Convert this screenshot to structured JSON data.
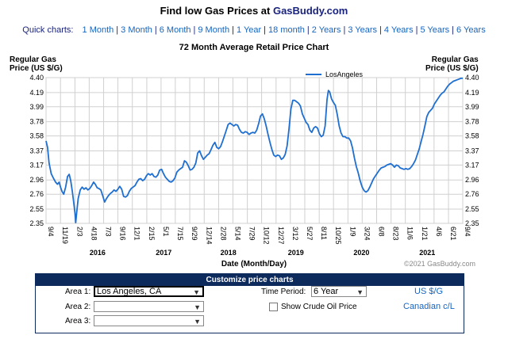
{
  "header": {
    "title_prefix": "Find low Gas Prices at ",
    "title_brand": "GasBuddy.com"
  },
  "quick_charts": {
    "label": "Quick charts:",
    "links": [
      "1 Month",
      "3 Month",
      "6 Month",
      "9 Month",
      "1 Year",
      "18 month",
      "2 Years",
      "3 Years",
      "4 Years",
      "5 Years",
      "6 Years"
    ]
  },
  "chart_data": {
    "type": "line",
    "title": "72 Month Average Retail Price Chart",
    "ylabel_left": [
      "Regular Gas",
      "Price (US $/G)"
    ],
    "ylabel_right": [
      "Regular Gas",
      "Price (US $/G)"
    ],
    "xlabel": "Date (Month/Day)",
    "ylim": [
      2.35,
      4.4
    ],
    "yticks": [
      "2.35",
      "2.55",
      "2.76",
      "2.96",
      "3.17",
      "3.37",
      "3.58",
      "3.78",
      "3.99",
      "4.19",
      "4.40"
    ],
    "ytick_values": [
      2.35,
      2.55,
      2.76,
      2.96,
      3.17,
      3.37,
      3.58,
      3.78,
      3.99,
      4.19,
      4.4
    ],
    "xlim": [
      "2015-09-04",
      "2021-09-04"
    ],
    "xticks": [
      {
        "date": "2015-09-04",
        "label": "9/4"
      },
      {
        "date": "2015-11-19",
        "label": "11/19"
      },
      {
        "date": "2016-02-03",
        "label": "2/3"
      },
      {
        "date": "2016-04-18",
        "label": "4/18"
      },
      {
        "date": "2016-07-03",
        "label": "7/3"
      },
      {
        "date": "2016-09-16",
        "label": "9/16"
      },
      {
        "date": "2016-12-01",
        "label": "12/1"
      },
      {
        "date": "2017-02-15",
        "label": "2/15"
      },
      {
        "date": "2017-05-01",
        "label": "5/1"
      },
      {
        "date": "2017-07-15",
        "label": "7/15"
      },
      {
        "date": "2017-09-29",
        "label": "9/29"
      },
      {
        "date": "2017-12-14",
        "label": "12/14"
      },
      {
        "date": "2018-02-28",
        "label": "2/28"
      },
      {
        "date": "2018-05-14",
        "label": "5/14"
      },
      {
        "date": "2018-07-29",
        "label": "7/29"
      },
      {
        "date": "2018-10-12",
        "label": "10/12"
      },
      {
        "date": "2018-12-27",
        "label": "12/27"
      },
      {
        "date": "2019-03-12",
        "label": "3/12"
      },
      {
        "date": "2019-05-27",
        "label": "5/27"
      },
      {
        "date": "2019-08-11",
        "label": "8/11"
      },
      {
        "date": "2019-10-25",
        "label": "10/25"
      },
      {
        "date": "2020-01-09",
        "label": "1/9"
      },
      {
        "date": "2020-03-24",
        "label": "3/24"
      },
      {
        "date": "2020-06-08",
        "label": "6/8"
      },
      {
        "date": "2020-08-23",
        "label": "8/23"
      },
      {
        "date": "2020-11-06",
        "label": "11/6"
      },
      {
        "date": "2021-01-21",
        "label": "1/21"
      },
      {
        "date": "2021-04-06",
        "label": "4/6"
      },
      {
        "date": "2021-06-21",
        "label": "6/21"
      },
      {
        "date": "2021-09-04",
        "label": "9/4"
      }
    ],
    "year_labels": [
      {
        "date": "2016-06-01",
        "label": "2016"
      },
      {
        "date": "2017-05-15",
        "label": "2017"
      },
      {
        "date": "2018-04-20",
        "label": "2018"
      },
      {
        "date": "2019-04-10",
        "label": "2019"
      },
      {
        "date": "2020-03-20",
        "label": "2020"
      },
      {
        "date": "2021-03-01",
        "label": "2021"
      }
    ],
    "grid": true,
    "legend": "top-right",
    "series": [
      {
        "name": "LosAngeles",
        "color": "#1f6fd1",
        "points": [
          [
            "2015-09-04",
            3.51
          ],
          [
            "2015-09-12",
            3.42
          ],
          [
            "2015-09-20",
            3.2
          ],
          [
            "2015-10-01",
            3.05
          ],
          [
            "2015-10-12",
            2.99
          ],
          [
            "2015-10-24",
            2.93
          ],
          [
            "2015-11-03",
            2.9
          ],
          [
            "2015-11-12",
            2.93
          ],
          [
            "2015-11-19",
            2.86
          ],
          [
            "2015-11-27",
            2.8
          ],
          [
            "2015-12-06",
            2.76
          ],
          [
            "2015-12-16",
            2.86
          ],
          [
            "2015-12-26",
            3.01
          ],
          [
            "2016-01-04",
            3.04
          ],
          [
            "2016-01-12",
            2.95
          ],
          [
            "2016-01-20",
            2.8
          ],
          [
            "2016-01-27",
            2.66
          ],
          [
            "2016-02-03",
            2.5
          ],
          [
            "2016-02-07",
            2.36
          ],
          [
            "2016-02-12",
            2.5
          ],
          [
            "2016-02-20",
            2.7
          ],
          [
            "2016-03-02",
            2.82
          ],
          [
            "2016-03-12",
            2.86
          ],
          [
            "2016-03-22",
            2.83
          ],
          [
            "2016-04-01",
            2.85
          ],
          [
            "2016-04-11",
            2.82
          ],
          [
            "2016-04-21",
            2.84
          ],
          [
            "2016-05-01",
            2.88
          ],
          [
            "2016-05-11",
            2.93
          ],
          [
            "2016-05-20",
            2.9
          ],
          [
            "2016-05-30",
            2.85
          ],
          [
            "2016-06-08",
            2.84
          ],
          [
            "2016-06-18",
            2.82
          ],
          [
            "2016-06-28",
            2.74
          ],
          [
            "2016-07-08",
            2.65
          ],
          [
            "2016-07-18",
            2.7
          ],
          [
            "2016-07-28",
            2.74
          ],
          [
            "2016-08-07",
            2.77
          ],
          [
            "2016-08-17",
            2.79
          ],
          [
            "2016-08-27",
            2.82
          ],
          [
            "2016-09-06",
            2.8
          ],
          [
            "2016-09-16",
            2.83
          ],
          [
            "2016-09-26",
            2.87
          ],
          [
            "2016-10-06",
            2.83
          ],
          [
            "2016-10-16",
            2.73
          ],
          [
            "2016-10-26",
            2.72
          ],
          [
            "2016-11-05",
            2.74
          ],
          [
            "2016-11-15",
            2.8
          ],
          [
            "2016-11-25",
            2.84
          ],
          [
            "2016-12-05",
            2.86
          ],
          [
            "2016-12-15",
            2.88
          ],
          [
            "2016-12-25",
            2.93
          ],
          [
            "2017-01-04",
            2.97
          ],
          [
            "2017-01-14",
            2.98
          ],
          [
            "2017-01-24",
            2.95
          ],
          [
            "2017-02-03",
            2.97
          ],
          [
            "2017-02-13",
            3.02
          ],
          [
            "2017-02-23",
            3.05
          ],
          [
            "2017-03-05",
            3.03
          ],
          [
            "2017-03-15",
            3.05
          ],
          [
            "2017-03-25",
            3.01
          ],
          [
            "2017-04-04",
            3.0
          ],
          [
            "2017-04-14",
            3.03
          ],
          [
            "2017-04-24",
            3.1
          ],
          [
            "2017-05-04",
            3.11
          ],
          [
            "2017-05-14",
            3.05
          ],
          [
            "2017-05-24",
            3.0
          ],
          [
            "2017-06-03",
            2.97
          ],
          [
            "2017-06-13",
            2.94
          ],
          [
            "2017-06-23",
            2.93
          ],
          [
            "2017-07-03",
            2.95
          ],
          [
            "2017-07-13",
            2.99
          ],
          [
            "2017-07-23",
            3.07
          ],
          [
            "2017-08-02",
            3.1
          ],
          [
            "2017-08-12",
            3.12
          ],
          [
            "2017-08-22",
            3.14
          ],
          [
            "2017-09-01",
            3.23
          ],
          [
            "2017-09-11",
            3.21
          ],
          [
            "2017-09-21",
            3.16
          ],
          [
            "2017-10-01",
            3.1
          ],
          [
            "2017-10-11",
            3.11
          ],
          [
            "2017-10-21",
            3.14
          ],
          [
            "2017-10-31",
            3.2
          ],
          [
            "2017-11-10",
            3.34
          ],
          [
            "2017-11-20",
            3.37
          ],
          [
            "2017-11-30",
            3.3
          ],
          [
            "2017-12-10",
            3.25
          ],
          [
            "2017-12-20",
            3.28
          ],
          [
            "2017-12-30",
            3.31
          ],
          [
            "2018-01-09",
            3.33
          ],
          [
            "2018-01-19",
            3.39
          ],
          [
            "2018-01-29",
            3.45
          ],
          [
            "2018-02-08",
            3.49
          ],
          [
            "2018-02-18",
            3.42
          ],
          [
            "2018-02-28",
            3.4
          ],
          [
            "2018-03-10",
            3.43
          ],
          [
            "2018-03-20",
            3.5
          ],
          [
            "2018-03-30",
            3.58
          ],
          [
            "2018-04-09",
            3.66
          ],
          [
            "2018-04-19",
            3.74
          ],
          [
            "2018-04-29",
            3.76
          ],
          [
            "2018-05-09",
            3.74
          ],
          [
            "2018-05-19",
            3.72
          ],
          [
            "2018-05-29",
            3.74
          ],
          [
            "2018-06-08",
            3.73
          ],
          [
            "2018-06-18",
            3.67
          ],
          [
            "2018-06-28",
            3.63
          ],
          [
            "2018-07-08",
            3.62
          ],
          [
            "2018-07-18",
            3.64
          ],
          [
            "2018-07-28",
            3.63
          ],
          [
            "2018-08-07",
            3.6
          ],
          [
            "2018-08-17",
            3.62
          ],
          [
            "2018-08-27",
            3.63
          ],
          [
            "2018-09-06",
            3.62
          ],
          [
            "2018-09-16",
            3.66
          ],
          [
            "2018-09-26",
            3.75
          ],
          [
            "2018-10-06",
            3.86
          ],
          [
            "2018-10-16",
            3.89
          ],
          [
            "2018-10-26",
            3.82
          ],
          [
            "2018-11-05",
            3.72
          ],
          [
            "2018-11-15",
            3.6
          ],
          [
            "2018-11-25",
            3.49
          ],
          [
            "2018-12-05",
            3.39
          ],
          [
            "2018-12-15",
            3.31
          ],
          [
            "2018-12-25",
            3.29
          ],
          [
            "2019-01-04",
            3.31
          ],
          [
            "2019-01-14",
            3.3
          ],
          [
            "2019-01-24",
            3.25
          ],
          [
            "2019-02-03",
            3.27
          ],
          [
            "2019-02-13",
            3.32
          ],
          [
            "2019-02-23",
            3.44
          ],
          [
            "2019-03-05",
            3.68
          ],
          [
            "2019-03-15",
            3.96
          ],
          [
            "2019-03-25",
            4.08
          ],
          [
            "2019-04-04",
            4.08
          ],
          [
            "2019-04-14",
            4.06
          ],
          [
            "2019-04-24",
            4.04
          ],
          [
            "2019-05-04",
            4.0
          ],
          [
            "2019-05-14",
            3.89
          ],
          [
            "2019-05-24",
            3.83
          ],
          [
            "2019-06-03",
            3.77
          ],
          [
            "2019-06-13",
            3.74
          ],
          [
            "2019-06-23",
            3.66
          ],
          [
            "2019-07-03",
            3.63
          ],
          [
            "2019-07-13",
            3.69
          ],
          [
            "2019-07-23",
            3.71
          ],
          [
            "2019-08-02",
            3.69
          ],
          [
            "2019-08-12",
            3.61
          ],
          [
            "2019-08-22",
            3.57
          ],
          [
            "2019-09-01",
            3.59
          ],
          [
            "2019-09-11",
            3.72
          ],
          [
            "2019-09-21",
            4.09
          ],
          [
            "2019-09-28",
            4.22
          ],
          [
            "2019-10-05",
            4.2
          ],
          [
            "2019-10-15",
            4.1
          ],
          [
            "2019-10-25",
            4.05
          ],
          [
            "2019-11-04",
            4.01
          ],
          [
            "2019-11-14",
            3.88
          ],
          [
            "2019-11-24",
            3.72
          ],
          [
            "2019-12-04",
            3.62
          ],
          [
            "2019-12-14",
            3.57
          ],
          [
            "2019-12-24",
            3.57
          ],
          [
            "2020-01-03",
            3.55
          ],
          [
            "2020-01-13",
            3.55
          ],
          [
            "2020-01-23",
            3.51
          ],
          [
            "2020-02-02",
            3.41
          ],
          [
            "2020-02-12",
            3.27
          ],
          [
            "2020-02-22",
            3.15
          ],
          [
            "2020-03-03",
            3.06
          ],
          [
            "2020-03-13",
            2.95
          ],
          [
            "2020-03-24",
            2.86
          ],
          [
            "2020-04-03",
            2.81
          ],
          [
            "2020-04-13",
            2.79
          ],
          [
            "2020-04-23",
            2.81
          ],
          [
            "2020-05-03",
            2.86
          ],
          [
            "2020-05-13",
            2.92
          ],
          [
            "2020-05-23",
            2.98
          ],
          [
            "2020-06-02",
            3.02
          ],
          [
            "2020-06-12",
            3.06
          ],
          [
            "2020-06-22",
            3.1
          ],
          [
            "2020-07-02",
            3.13
          ],
          [
            "2020-07-12",
            3.14
          ],
          [
            "2020-07-22",
            3.15
          ],
          [
            "2020-08-01",
            3.17
          ],
          [
            "2020-08-11",
            3.18
          ],
          [
            "2020-08-21",
            3.19
          ],
          [
            "2020-08-31",
            3.17
          ],
          [
            "2020-09-10",
            3.14
          ],
          [
            "2020-09-20",
            3.17
          ],
          [
            "2020-09-30",
            3.16
          ],
          [
            "2020-10-10",
            3.13
          ],
          [
            "2020-10-20",
            3.12
          ],
          [
            "2020-10-30",
            3.11
          ],
          [
            "2020-11-09",
            3.12
          ],
          [
            "2020-11-19",
            3.11
          ],
          [
            "2020-11-29",
            3.12
          ],
          [
            "2020-12-09",
            3.15
          ],
          [
            "2020-12-19",
            3.19
          ],
          [
            "2020-12-29",
            3.24
          ],
          [
            "2021-01-08",
            3.32
          ],
          [
            "2021-01-18",
            3.4
          ],
          [
            "2021-01-28",
            3.5
          ],
          [
            "2021-02-07",
            3.6
          ],
          [
            "2021-02-17",
            3.72
          ],
          [
            "2021-02-27",
            3.85
          ],
          [
            "2021-03-09",
            3.91
          ],
          [
            "2021-03-19",
            3.94
          ],
          [
            "2021-03-29",
            3.97
          ],
          [
            "2021-04-08",
            4.03
          ],
          [
            "2021-04-18",
            4.07
          ],
          [
            "2021-04-28",
            4.11
          ],
          [
            "2021-05-08",
            4.15
          ],
          [
            "2021-05-18",
            4.18
          ],
          [
            "2021-05-28",
            4.2
          ],
          [
            "2021-06-07",
            4.24
          ],
          [
            "2021-06-17",
            4.28
          ],
          [
            "2021-06-27",
            4.31
          ],
          [
            "2021-07-07",
            4.33
          ],
          [
            "2021-07-17",
            4.35
          ],
          [
            "2021-07-27",
            4.36
          ],
          [
            "2021-08-06",
            4.37
          ],
          [
            "2021-08-16",
            4.38
          ],
          [
            "2021-08-26",
            4.39
          ],
          [
            "2021-09-04",
            4.39
          ]
        ]
      }
    ]
  },
  "footer": {
    "xlabel": "Date (Month/Day)",
    "copyright": "©2021 GasBuddy.com"
  },
  "customize": {
    "heading": "Customize price charts",
    "area1_label": "Area 1:",
    "area1_value": "Los Angeles, CA",
    "area2_label": "Area 2:",
    "area2_value": "",
    "area3_label": "Area 3:",
    "area3_value": "",
    "time_period_label": "Time Period:",
    "time_period_value": "6 Year",
    "crude_label": "Show Crude Oil Price",
    "currency_us": "US $/G",
    "currency_ca": "Canadian c/L"
  }
}
